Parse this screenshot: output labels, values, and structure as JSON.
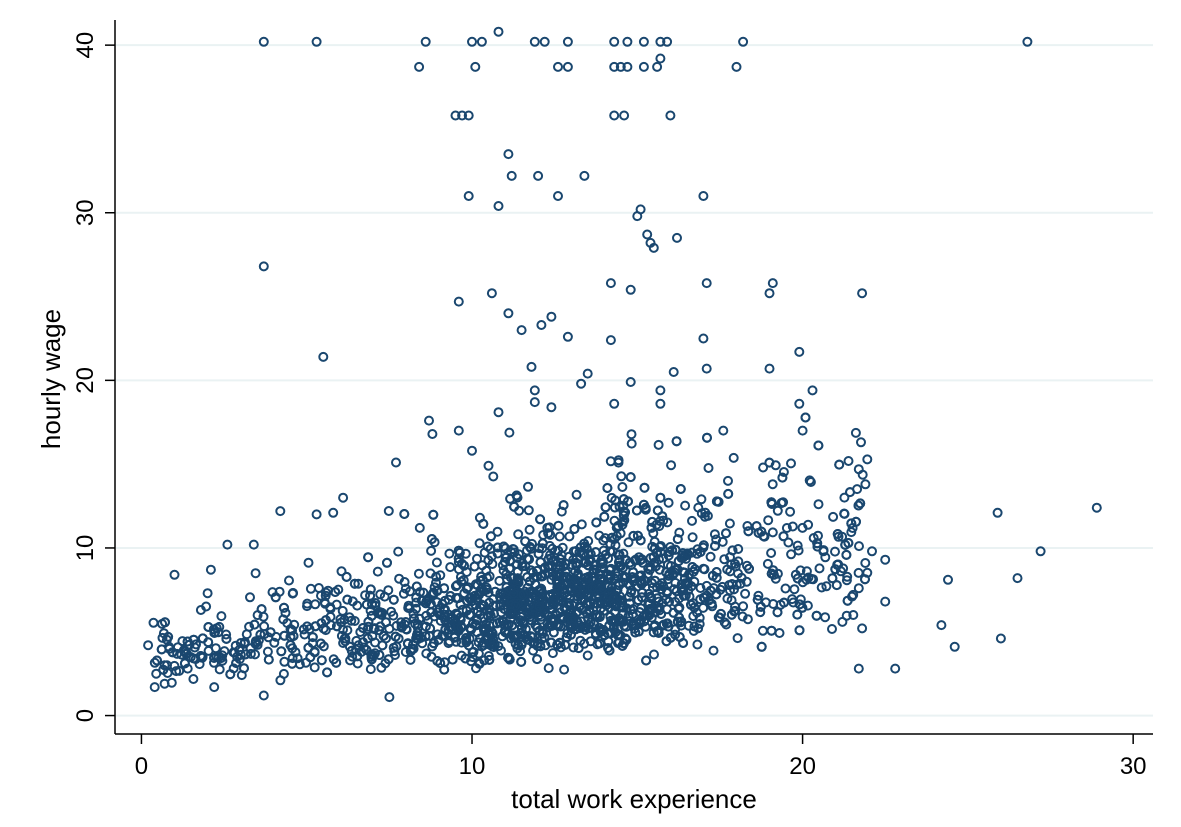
{
  "chart_data": {
    "type": "scatter",
    "xlabel": "total work experience",
    "ylabel": "hourly wage",
    "xlim": [
      -0.8,
      30.6
    ],
    "ylim": [
      -1.1,
      41.5
    ],
    "xticks": [
      {
        "value": 0,
        "label": "0"
      },
      {
        "value": 10,
        "label": "10"
      },
      {
        "value": 20,
        "label": "20"
      },
      {
        "value": 30,
        "label": "30"
      }
    ],
    "yticks": [
      {
        "value": 0,
        "label": "0"
      },
      {
        "value": 10,
        "label": "10"
      },
      {
        "value": 20,
        "label": "20"
      },
      {
        "value": 30,
        "label": "30"
      },
      {
        "value": 40,
        "label": "40"
      }
    ],
    "grid": "horizontal",
    "legend": "none",
    "marker_color": "#1a476f",
    "n_dense_points_approx": 2200,
    "points_visible": [
      [
        3.7,
        40.2
      ],
      [
        5.3,
        40.2
      ],
      [
        8.6,
        40.2
      ],
      [
        10.0,
        40.2
      ],
      [
        10.3,
        40.2
      ],
      [
        10.8,
        40.8
      ],
      [
        11.9,
        40.2
      ],
      [
        12.2,
        40.2
      ],
      [
        12.9,
        40.2
      ],
      [
        14.3,
        40.2
      ],
      [
        14.7,
        40.2
      ],
      [
        15.2,
        40.2
      ],
      [
        15.7,
        40.2
      ],
      [
        15.9,
        40.2
      ],
      [
        18.2,
        40.2
      ],
      [
        26.8,
        40.2
      ],
      [
        8.4,
        38.7
      ],
      [
        10.1,
        38.7
      ],
      [
        12.6,
        38.7
      ],
      [
        12.9,
        38.7
      ],
      [
        14.3,
        38.7
      ],
      [
        14.5,
        38.7
      ],
      [
        14.7,
        38.7
      ],
      [
        15.2,
        38.7
      ],
      [
        15.6,
        38.7
      ],
      [
        18.0,
        38.7
      ],
      [
        15.7,
        39.2
      ],
      [
        9.5,
        35.8
      ],
      [
        9.7,
        35.8
      ],
      [
        9.9,
        35.8
      ],
      [
        14.3,
        35.8
      ],
      [
        14.6,
        35.8
      ],
      [
        16.0,
        35.8
      ],
      [
        11.1,
        33.5
      ],
      [
        11.2,
        32.2
      ],
      [
        12.0,
        32.2
      ],
      [
        13.4,
        32.2
      ],
      [
        9.9,
        31.0
      ],
      [
        12.6,
        31.0
      ],
      [
        17.0,
        31.0
      ],
      [
        10.8,
        30.4
      ],
      [
        15.0,
        29.8
      ],
      [
        15.1,
        30.2
      ],
      [
        15.3,
        28.7
      ],
      [
        15.4,
        28.2
      ],
      [
        15.5,
        27.9
      ],
      [
        16.2,
        28.5
      ],
      [
        3.7,
        26.8
      ],
      [
        14.2,
        25.8
      ],
      [
        17.1,
        25.8
      ],
      [
        19.1,
        25.8
      ],
      [
        9.6,
        24.7
      ],
      [
        10.6,
        25.2
      ],
      [
        14.8,
        25.4
      ],
      [
        19.0,
        25.2
      ],
      [
        21.8,
        25.2
      ],
      [
        11.1,
        24.0
      ],
      [
        12.4,
        23.8
      ],
      [
        11.5,
        23.0
      ],
      [
        12.1,
        23.3
      ],
      [
        12.9,
        22.6
      ],
      [
        14.2,
        22.4
      ],
      [
        17.0,
        22.5
      ],
      [
        5.5,
        21.4
      ],
      [
        19.9,
        21.7
      ],
      [
        11.8,
        20.8
      ],
      [
        13.5,
        20.4
      ],
      [
        16.1,
        20.5
      ],
      [
        17.1,
        20.7
      ],
      [
        19.0,
        20.7
      ],
      [
        13.3,
        19.8
      ],
      [
        14.8,
        19.9
      ],
      [
        11.9,
        19.4
      ],
      [
        15.7,
        19.4
      ],
      [
        20.3,
        19.4
      ],
      [
        11.9,
        18.7
      ],
      [
        12.4,
        18.4
      ],
      [
        14.3,
        18.6
      ],
      [
        15.7,
        18.6
      ],
      [
        19.9,
        18.6
      ],
      [
        10.8,
        18.1
      ],
      [
        8.7,
        17.6
      ],
      [
        8.8,
        16.8
      ],
      [
        9.6,
        17.0
      ],
      [
        17.6,
        17.0
      ],
      [
        20.0,
        17.0
      ],
      [
        10.0,
        15.8
      ],
      [
        10.5,
        14.9
      ],
      [
        7.7,
        15.1
      ],
      [
        21.7,
        14.7
      ],
      [
        21.9,
        13.8
      ],
      [
        4.2,
        12.2
      ],
      [
        5.3,
        12.0
      ],
      [
        5.8,
        12.1
      ],
      [
        6.1,
        13.0
      ],
      [
        3.4,
        10.2
      ],
      [
        2.6,
        10.2
      ],
      [
        2.1,
        8.7
      ],
      [
        1.0,
        8.4
      ],
      [
        2.0,
        7.3
      ],
      [
        1.8,
        6.3
      ],
      [
        0.2,
        4.2
      ],
      [
        0.7,
        3.0
      ],
      [
        0.4,
        1.7
      ],
      [
        0.7,
        1.9
      ],
      [
        1.4,
        2.8
      ],
      [
        2.2,
        1.7
      ],
      [
        3.7,
        1.2
      ],
      [
        7.5,
        1.1
      ],
      [
        22.5,
        6.8
      ],
      [
        22.1,
        9.8
      ],
      [
        22.5,
        9.3
      ],
      [
        21.7,
        7.6
      ],
      [
        21.8,
        5.2
      ],
      [
        21.7,
        2.8
      ],
      [
        22.8,
        2.8
      ],
      [
        24.2,
        5.4
      ],
      [
        24.4,
        8.1
      ],
      [
        24.6,
        4.1
      ],
      [
        25.9,
        12.1
      ],
      [
        26.0,
        4.6
      ],
      [
        26.5,
        8.2
      ],
      [
        27.2,
        9.8
      ],
      [
        28.9,
        12.4
      ]
    ]
  }
}
